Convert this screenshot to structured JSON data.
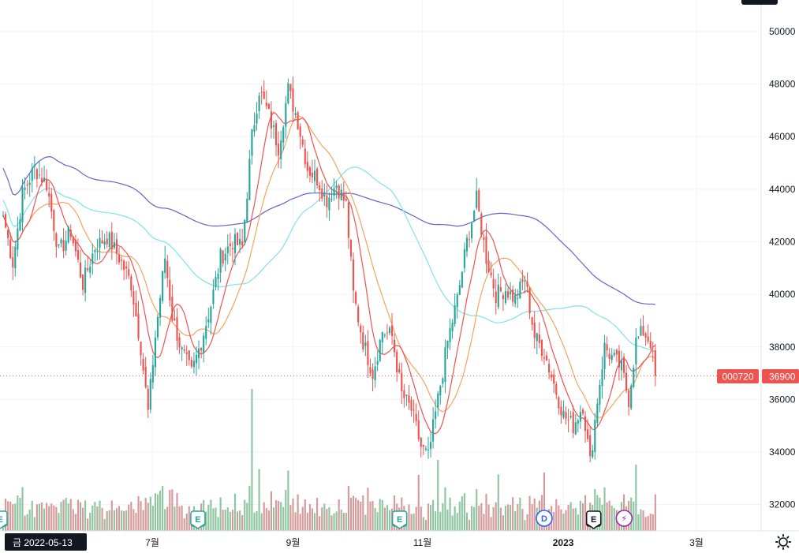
{
  "chart_data": {
    "type": "candlestick",
    "symbol": "000720",
    "last_price": 36900,
    "ylim": [
      31000,
      51200
    ],
    "y_ticks": [
      32000,
      34000,
      36000,
      38000,
      40000,
      42000,
      44000,
      46000,
      48000,
      50000
    ],
    "x_ticks": [
      {
        "label": "7월",
        "t": 0.2,
        "bold": false
      },
      {
        "label": "9월",
        "t": 0.385,
        "bold": false
      },
      {
        "label": "11월",
        "t": 0.555,
        "bold": false
      },
      {
        "label": "2023",
        "t": 0.74,
        "bold": true
      },
      {
        "label": "3월",
        "t": 0.915,
        "bold": false
      }
    ],
    "crosshair_date": "금 2022-05-13",
    "close_path": [
      [
        0,
        43000
      ],
      [
        4,
        41200
      ],
      [
        8,
        43800
      ],
      [
        13,
        44800
      ],
      [
        18,
        44200
      ],
      [
        23,
        41600
      ],
      [
        28,
        42400
      ],
      [
        33,
        40400
      ],
      [
        38,
        41800
      ],
      [
        43,
        42200
      ],
      [
        48,
        41400
      ],
      [
        53,
        40400
      ],
      [
        57,
        38000
      ],
      [
        60,
        35500
      ],
      [
        63,
        38400
      ],
      [
        67,
        41400
      ],
      [
        70,
        39200
      ],
      [
        74,
        37800
      ],
      [
        78,
        37000
      ],
      [
        82,
        38200
      ],
      [
        86,
        39600
      ],
      [
        90,
        41400
      ],
      [
        95,
        42000
      ],
      [
        99,
        41800
      ],
      [
        103,
        46000
      ],
      [
        106,
        47800
      ],
      [
        110,
        46800
      ],
      [
        114,
        45600
      ],
      [
        118,
        47800
      ],
      [
        122,
        46600
      ],
      [
        126,
        44800
      ],
      [
        130,
        44400
      ],
      [
        134,
        43600
      ],
      [
        138,
        44200
      ],
      [
        142,
        43400
      ],
      [
        145,
        40000
      ],
      [
        149,
        38200
      ],
      [
        153,
        37000
      ],
      [
        157,
        38600
      ],
      [
        161,
        38400
      ],
      [
        165,
        36200
      ],
      [
        169,
        35600
      ],
      [
        173,
        34200
      ],
      [
        176,
        33800
      ],
      [
        180,
        36000
      ],
      [
        184,
        38200
      ],
      [
        188,
        39800
      ],
      [
        192,
        42000
      ],
      [
        196,
        43600
      ],
      [
        200,
        41400
      ],
      [
        204,
        40000
      ],
      [
        208,
        40200
      ],
      [
        212,
        39800
      ],
      [
        216,
        40600
      ],
      [
        220,
        38400
      ],
      [
        224,
        37800
      ],
      [
        228,
        36600
      ],
      [
        232,
        35400
      ],
      [
        236,
        35000
      ],
      [
        240,
        35800
      ],
      [
        243,
        33600
      ],
      [
        246,
        36000
      ],
      [
        249,
        38000
      ],
      [
        252,
        37600
      ],
      [
        256,
        37200
      ],
      [
        259,
        36000
      ],
      [
        262,
        38200
      ],
      [
        265,
        38600
      ],
      [
        268,
        38200
      ],
      [
        270,
        36900
      ]
    ],
    "event_markers": [
      {
        "label": "E",
        "t": 0.0
      },
      {
        "label": "E",
        "t": 0.26
      },
      {
        "label": "E",
        "t": 0.525
      },
      {
        "label": "D",
        "t": 0.715
      },
      {
        "label": "E",
        "t": 0.78
      },
      {
        "label": "⚡",
        "t": 0.82
      }
    ],
    "colors": {
      "up": "#26a69a",
      "down": "#ef5350",
      "vol_up": "#8ec5a0",
      "vol_down": "#d59a9a",
      "ma_fast": "#ef5350",
      "ma_mid": "#f4a460",
      "ma_slow": "#7fe3e8",
      "ma_long": "#6a62c8",
      "badge": "#ef5350",
      "grid": "#f0f3fa"
    }
  }
}
